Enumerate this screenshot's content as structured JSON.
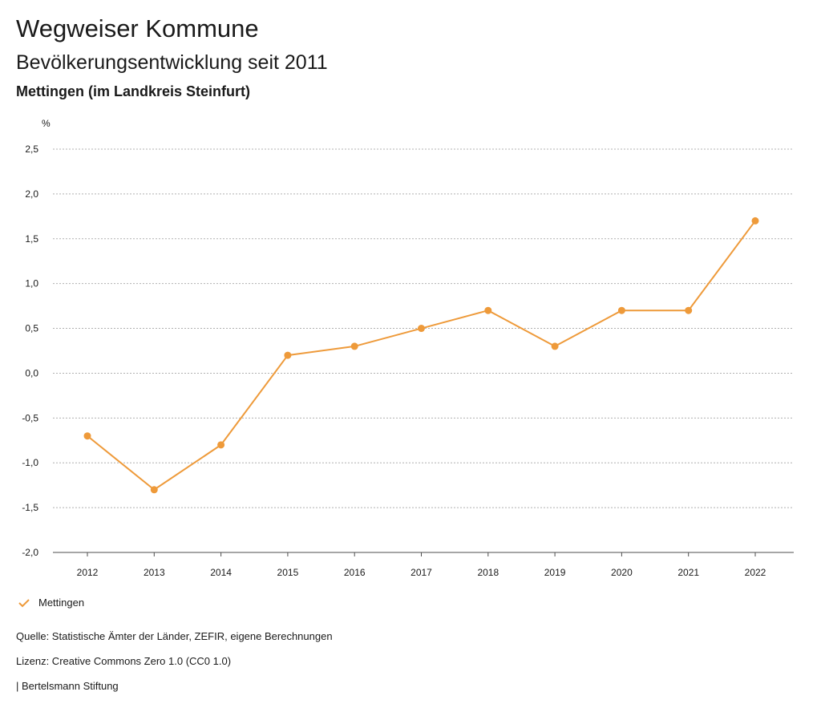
{
  "header": {
    "title": "Wegweiser Kommune",
    "subtitle": "Bevölkerungsentwicklung seit 2011",
    "region": "Mettingen (im Landkreis Steinfurt)"
  },
  "legend": {
    "label": "Mettingen",
    "icon": "checkmark-icon"
  },
  "footer": {
    "source": "Quelle: Statistische Ämter der Länder, ZEFIR, eigene Berechnungen",
    "license": "Lizenz: Creative Commons Zero 1.0 (CC0 1.0)",
    "publisher": "| Bertelsmann Stiftung"
  },
  "chart_data": {
    "type": "line",
    "ylabel": "%",
    "xlabel": "",
    "ylim": [
      -2.0,
      2.5
    ],
    "yticks": [
      2.5,
      2.0,
      1.5,
      1.0,
      0.5,
      0.0,
      -0.5,
      -1.0,
      -1.5,
      -2.0
    ],
    "ytick_labels": [
      "2,5",
      "2,0",
      "1,5",
      "1,0",
      "0,5",
      "0,0",
      "-0,5",
      "-1,0",
      "-1,5",
      "-2,0"
    ],
    "categories": [
      "2012",
      "2013",
      "2014",
      "2015",
      "2016",
      "2017",
      "2018",
      "2019",
      "2020",
      "2021",
      "2022"
    ],
    "grid": true,
    "legend_position": "bottom-left",
    "series": [
      {
        "name": "Mettingen",
        "color": "#ee9a3a",
        "values": [
          -0.7,
          -1.3,
          -0.8,
          0.2,
          0.3,
          0.5,
          0.7,
          0.3,
          0.7,
          0.7,
          1.7
        ]
      }
    ]
  }
}
